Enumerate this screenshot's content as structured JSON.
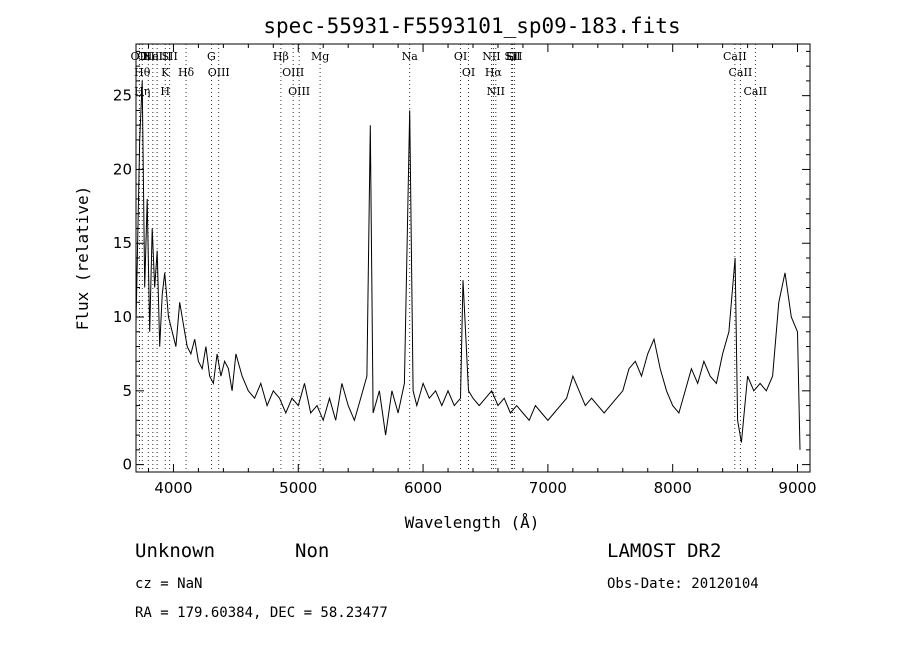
{
  "chart_data": {
    "type": "line",
    "title": "spec-55931-F5593101_sp09-183.fits",
    "xlabel": "Wavelength (Å)",
    "ylabel": "Flux (relative)",
    "xlim": [
      3700,
      9100
    ],
    "ylim": [
      -0.5,
      28.5
    ],
    "x_ticks": [
      4000,
      5000,
      6000,
      7000,
      8000,
      9000
    ],
    "y_ticks": [
      0,
      5,
      10,
      15,
      20,
      25
    ],
    "grid": false,
    "legend": "none",
    "series": [
      {
        "x": [
          3700,
          3730,
          3750,
          3770,
          3790,
          3810,
          3830,
          3850,
          3870,
          3890,
          3910,
          3930,
          3960,
          3990,
          4020,
          4050,
          4080,
          4110,
          4140,
          4170,
          4200,
          4230,
          4260,
          4290,
          4320,
          4350,
          4380,
          4410,
          4440,
          4470,
          4500,
          4550,
          4600,
          4650,
          4700,
          4750,
          4800,
          4850,
          4900,
          4950,
          5000,
          5050,
          5100,
          5150,
          5200,
          5250,
          5300,
          5350,
          5400,
          5450,
          5500,
          5550,
          5577,
          5600,
          5650,
          5700,
          5750,
          5800,
          5850,
          5893,
          5920,
          5950,
          6000,
          6050,
          6100,
          6150,
          6200,
          6250,
          6300,
          6320,
          6364,
          6400,
          6450,
          6500,
          6550,
          6600,
          6650,
          6700,
          6750,
          6800,
          6850,
          6900,
          6950,
          7000,
          7050,
          7100,
          7150,
          7200,
          7250,
          7300,
          7350,
          7400,
          7450,
          7500,
          7550,
          7600,
          7650,
          7700,
          7750,
          7800,
          7850,
          7900,
          7950,
          8000,
          8050,
          8100,
          8150,
          8200,
          8250,
          8300,
          8350,
          8400,
          8450,
          8500,
          8520,
          8550,
          8600,
          8650,
          8700,
          8750,
          8800,
          8850,
          8900,
          8950,
          9000,
          9020
        ],
        "y": [
          9.5,
          22.0,
          26.0,
          12.0,
          18.0,
          9.0,
          16.0,
          12.0,
          14.5,
          8.0,
          11.5,
          13.0,
          10.0,
          9.0,
          8.0,
          11.0,
          9.5,
          8.0,
          7.5,
          8.5,
          7.0,
          6.5,
          8.0,
          6.0,
          5.5,
          7.5,
          6.0,
          7.0,
          6.5,
          5.0,
          7.5,
          6.0,
          5.0,
          4.5,
          5.5,
          4.0,
          5.0,
          4.5,
          3.5,
          4.5,
          4.0,
          5.5,
          3.5,
          4.0,
          3.0,
          4.5,
          3.0,
          5.5,
          4.0,
          3.0,
          4.5,
          6.0,
          23.0,
          3.5,
          5.0,
          2.0,
          5.0,
          3.5,
          5.5,
          24.0,
          5.0,
          4.0,
          5.5,
          4.5,
          5.0,
          4.0,
          5.0,
          4.0,
          4.5,
          12.5,
          5.0,
          4.5,
          4.0,
          4.5,
          5.0,
          4.0,
          4.5,
          3.5,
          4.0,
          3.5,
          3.0,
          4.0,
          3.5,
          3.0,
          3.5,
          4.0,
          4.5,
          6.0,
          5.0,
          4.0,
          4.5,
          4.0,
          3.5,
          4.0,
          4.5,
          5.0,
          6.5,
          7.0,
          6.0,
          7.5,
          8.5,
          6.5,
          5.0,
          4.0,
          3.5,
          5.0,
          6.5,
          5.5,
          7.0,
          6.0,
          5.5,
          7.5,
          9.0,
          14.0,
          3.0,
          1.5,
          6.0,
          5.0,
          5.5,
          5.0,
          6.0,
          11.0,
          13.0,
          10.0,
          9.0,
          1.0
        ]
      }
    ],
    "line_marks": [
      {
        "x": 3727,
        "labels": [
          "OII"
        ]
      },
      {
        "x": 3750,
        "labels": [
          "Hθ",
          "Hη"
        ]
      },
      {
        "x": 3798,
        "labels": [
          "OIII"
        ]
      },
      {
        "x": 3835,
        "labels": [
          "HeI"
        ]
      },
      {
        "x": 3869,
        "labels": [
          "NeIII"
        ]
      },
      {
        "x": 3934,
        "labels": [
          "K",
          "H"
        ]
      },
      {
        "x": 3970,
        "labels": [
          "SII"
        ]
      },
      {
        "x": 4101,
        "labels": [
          "Hδ"
        ]
      },
      {
        "x": 4304,
        "labels": [
          "G"
        ]
      },
      {
        "x": 4363,
        "labels": [
          "OIII"
        ]
      },
      {
        "x": 4861,
        "labels": [
          "Hβ"
        ]
      },
      {
        "x": 4959,
        "labels": [
          "OIII"
        ]
      },
      {
        "x": 5007,
        "labels": [
          "OIII"
        ]
      },
      {
        "x": 5175,
        "labels": [
          "Mg"
        ]
      },
      {
        "x": 5893,
        "labels": [
          "Na"
        ]
      },
      {
        "x": 6300,
        "labels": [
          "OI"
        ]
      },
      {
        "x": 6364,
        "labels": [
          "OI"
        ]
      },
      {
        "x": 6548,
        "labels": [
          "NII"
        ]
      },
      {
        "x": 6563,
        "labels": [
          "Hα"
        ]
      },
      {
        "x": 6583,
        "labels": [
          "NII"
        ]
      },
      {
        "x": 6707,
        "labels": [
          "Li"
        ]
      },
      {
        "x": 6716,
        "labels": [
          "SII"
        ]
      },
      {
        "x": 6731,
        "labels": [
          "SII"
        ]
      },
      {
        "x": 8498,
        "labels": [
          "CaII"
        ]
      },
      {
        "x": 8542,
        "labels": [
          "CaII"
        ]
      },
      {
        "x": 8662,
        "labels": [
          "CaII"
        ]
      }
    ]
  },
  "info": {
    "class": "Unknown",
    "subclass": "Non",
    "survey": "LAMOST DR2",
    "cz": "cz = NaN",
    "obs_date": "Obs-Date: 20120104",
    "coords": "RA = 179.60384, DEC =  58.23477"
  }
}
